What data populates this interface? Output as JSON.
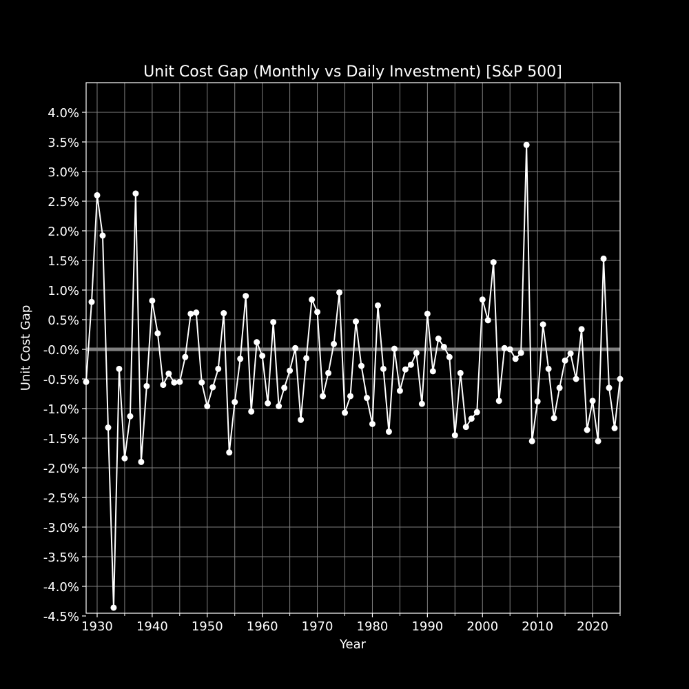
{
  "chart_data": {
    "type": "line",
    "title": "Unit Cost Gap (Monthly vs Daily Investment) [S&P 500]",
    "xlabel": "Year",
    "ylabel": "Unit Cost Gap",
    "xlim": [
      1928,
      2025
    ],
    "ylim": [
      -4.5,
      4.5
    ],
    "x_ticks": [
      1930,
      1940,
      1950,
      1960,
      1970,
      1980,
      1990,
      2000,
      2010,
      2020
    ],
    "x_minor_ticks": [
      1935,
      1945,
      1955,
      1965,
      1975,
      1985,
      1995,
      2005,
      2015,
      2025
    ],
    "y_ticks": [
      4.0,
      3.5,
      3.0,
      2.5,
      2.0,
      1.5,
      1.0,
      0.5,
      0.0,
      -0.5,
      -1.0,
      -1.5,
      -2.0,
      -2.5,
      -3.0,
      -3.5,
      -4.0,
      -4.5
    ],
    "y_tick_labels": [
      "4.0%",
      "3.5%",
      "3.0%",
      "2.5%",
      "2.0%",
      "1.5%",
      "1.0%",
      "0.5%",
      "-0.0%",
      "-0.5%",
      "-1.0%",
      "-1.5%",
      "-2.0%",
      "-2.5%",
      "-3.0%",
      "-3.5%",
      "-4.0%",
      "-4.5%"
    ],
    "grid": true,
    "reference_line": {
      "y": 0.0,
      "color": "#808080"
    },
    "colors": {
      "background": "#000000",
      "line": "#ffffff",
      "grid": "#808080",
      "text": "#ffffff"
    },
    "series": [
      {
        "name": "Unit Cost Gap",
        "unit": "%",
        "x": [
          1928,
          1929,
          1930,
          1931,
          1932,
          1933,
          1934,
          1935,
          1936,
          1937,
          1938,
          1939,
          1940,
          1941,
          1942,
          1943,
          1944,
          1945,
          1946,
          1947,
          1948,
          1949,
          1950,
          1951,
          1952,
          1953,
          1954,
          1955,
          1956,
          1957,
          1958,
          1959,
          1960,
          1961,
          1962,
          1963,
          1964,
          1965,
          1966,
          1967,
          1968,
          1969,
          1970,
          1971,
          1972,
          1973,
          1974,
          1975,
          1976,
          1977,
          1978,
          1979,
          1980,
          1981,
          1982,
          1983,
          1984,
          1985,
          1986,
          1987,
          1988,
          1989,
          1990,
          1991,
          1992,
          1993,
          1994,
          1995,
          1996,
          1997,
          1998,
          1999,
          2000,
          2001,
          2002,
          2003,
          2004,
          2005,
          2006,
          2007,
          2008,
          2009,
          2010,
          2011,
          2012,
          2013,
          2014,
          2015,
          2016,
          2017,
          2018,
          2019,
          2020,
          2021,
          2022,
          2023,
          2024,
          2025
        ],
        "values": [
          -0.55,
          0.8,
          2.6,
          1.92,
          -1.32,
          -4.36,
          -0.33,
          -1.84,
          -1.13,
          2.63,
          -1.9,
          -0.62,
          0.82,
          0.27,
          -0.6,
          -0.41,
          -0.56,
          -0.55,
          -0.13,
          0.6,
          0.62,
          -0.56,
          -0.96,
          -0.64,
          -0.33,
          0.61,
          -1.74,
          -0.89,
          -0.16,
          0.9,
          -1.05,
          0.12,
          -0.11,
          -0.91,
          0.46,
          -0.96,
          -0.65,
          -0.36,
          0.02,
          -1.19,
          -0.15,
          0.84,
          0.63,
          -0.79,
          -0.4,
          0.09,
          0.96,
          -1.07,
          -0.79,
          0.47,
          -0.28,
          -0.82,
          -1.26,
          0.74,
          -0.33,
          -1.39,
          0.01,
          -0.7,
          -0.34,
          -0.26,
          -0.06,
          -0.92,
          0.6,
          -0.37,
          0.18,
          0.04,
          -0.13,
          -1.45,
          -0.4,
          -1.31,
          -1.17,
          -1.06,
          0.84,
          0.49,
          1.47,
          -0.87,
          0.02,
          0.0,
          -0.16,
          -0.06,
          3.45,
          -1.55,
          -0.88,
          0.42,
          -0.33,
          -1.16,
          -0.65,
          -0.19,
          -0.07,
          -0.5,
          0.34,
          -1.36,
          -0.87,
          -1.55,
          1.53,
          -0.65,
          -1.33,
          -0.5
        ]
      }
    ]
  }
}
